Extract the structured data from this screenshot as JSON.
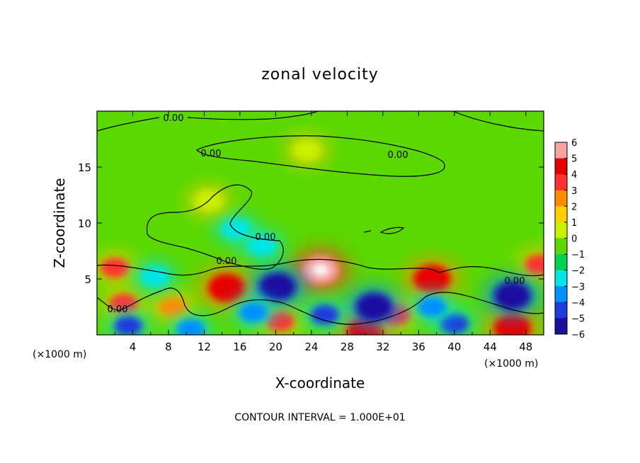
{
  "chart_data": {
    "type": "heatmap",
    "title": "zonal velocity",
    "xlabel": "X-coordinate",
    "ylabel": "Z-coordinate",
    "x_unit_left": "(×1000 m)",
    "x_unit_right": "(×1000 m)",
    "footer": "CONTOUR INTERVAL = 1.000E+01",
    "xlim": [
      0,
      50
    ],
    "ylim": [
      0,
      20
    ],
    "x_ticks": [
      4,
      8,
      12,
      16,
      20,
      24,
      28,
      32,
      36,
      40,
      44,
      48
    ],
    "y_ticks": [
      5,
      10,
      15
    ],
    "colorbar": {
      "levels": [
        6,
        5,
        4,
        3,
        2,
        1,
        0,
        -1,
        -2,
        -3,
        -4,
        -5,
        -6
      ],
      "colors": [
        "#f6a3a3",
        "#e60000",
        "#ff3030",
        "#ff8c00",
        "#ffd000",
        "#c8f000",
        "#5ad800",
        "#00d250",
        "#00e6e6",
        "#0090ff",
        "#1e3cdc",
        "#1a10a0",
        "#7a00a0"
      ]
    },
    "contour_labels": [
      "0.00",
      "0.00",
      "0.00",
      "0.00",
      "0.00",
      "0.00",
      "0.00"
    ],
    "blobs": [
      {
        "x": 25,
        "z": 5.8,
        "value": 6
      },
      {
        "x": 14.5,
        "z": 4.2,
        "value": 5
      },
      {
        "x": 37.5,
        "z": 5.0,
        "value": 5
      },
      {
        "x": 30,
        "z": 0.3,
        "value": 5
      },
      {
        "x": 20.5,
        "z": 1.2,
        "value": 4
      },
      {
        "x": 3.0,
        "z": 2.8,
        "value": 4
      },
      {
        "x": 2.0,
        "z": 6.0,
        "value": 4
      },
      {
        "x": 49.5,
        "z": 6.3,
        "value": 4
      },
      {
        "x": 46.5,
        "z": 0.6,
        "value": 5
      },
      {
        "x": 33.5,
        "z": 1.8,
        "value": 4
      },
      {
        "x": 8.5,
        "z": 2.5,
        "value": 3
      },
      {
        "x": 20.2,
        "z": 4.3,
        "value": -5
      },
      {
        "x": 31,
        "z": 2.5,
        "value": -5
      },
      {
        "x": 46.5,
        "z": 3.5,
        "value": -5
      },
      {
        "x": 40,
        "z": 1.0,
        "value": -4
      },
      {
        "x": 3.5,
        "z": 0.8,
        "value": -4
      },
      {
        "x": 25.5,
        "z": 1.8,
        "value": -4
      },
      {
        "x": 17.5,
        "z": 2.0,
        "value": -3
      },
      {
        "x": 37.5,
        "z": 2.5,
        "value": -3
      },
      {
        "x": 15.5,
        "z": 9.5,
        "value": -2
      },
      {
        "x": 18.5,
        "z": 8.0,
        "value": -2
      },
      {
        "x": 6.5,
        "z": 5.2,
        "value": -2
      },
      {
        "x": 10.5,
        "z": 0.5,
        "value": -3
      },
      {
        "x": 23.5,
        "z": 16.5,
        "value": 1
      },
      {
        "x": 12.5,
        "z": 12.0,
        "value": 1
      }
    ]
  }
}
